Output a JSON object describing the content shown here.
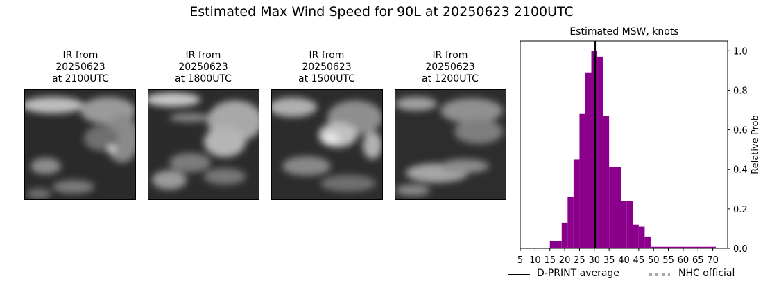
{
  "figure": {
    "title": "Estimated Max Wind Speed for 90L at 20250623 2100UTC"
  },
  "ir_panels": [
    {
      "line1": "IR from",
      "line2": "20250623",
      "line3": "at 2100UTC"
    },
    {
      "line1": "IR from",
      "line2": "20250623",
      "line3": "at 1800UTC"
    },
    {
      "line1": "IR from",
      "line2": "20250623",
      "line3": "at 1500UTC"
    },
    {
      "line1": "IR from",
      "line2": "20250623",
      "line3": "at 1200UTC"
    }
  ],
  "legend": {
    "dprint_label": "D-PRINT average",
    "nhc_label": "NHC official"
  },
  "chart_data": {
    "type": "bar",
    "title": "Estimated MSW, knots",
    "xlabel": "",
    "ylabel": "Relative Prob",
    "xlim": [
      5,
      75
    ],
    "ylim": [
      0,
      1.05
    ],
    "x_ticks": [
      5,
      10,
      15,
      20,
      25,
      30,
      35,
      40,
      45,
      50,
      55,
      60,
      65,
      70
    ],
    "y_ticks": [
      0.0,
      0.2,
      0.4,
      0.6,
      0.8,
      1.0
    ],
    "y_tick_labels": [
      "0.0",
      "0.2",
      "0.4",
      "0.6",
      "0.8",
      "1.0"
    ],
    "y_axis_side": "right",
    "bin_width": 2,
    "bins": [
      {
        "x0": 15,
        "value": 0.035
      },
      {
        "x0": 17,
        "value": 0.035
      },
      {
        "x0": 19,
        "value": 0.13
      },
      {
        "x0": 21,
        "value": 0.26
      },
      {
        "x0": 23,
        "value": 0.45
      },
      {
        "x0": 25,
        "value": 0.68
      },
      {
        "x0": 27,
        "value": 0.89
      },
      {
        "x0": 29,
        "value": 1.0
      },
      {
        "x0": 31,
        "value": 0.97
      },
      {
        "x0": 33,
        "value": 0.67
      },
      {
        "x0": 35,
        "value": 0.41
      },
      {
        "x0": 37,
        "value": 0.41
      },
      {
        "x0": 39,
        "value": 0.24
      },
      {
        "x0": 41,
        "value": 0.24
      },
      {
        "x0": 43,
        "value": 0.12
      },
      {
        "x0": 45,
        "value": 0.11
      },
      {
        "x0": 47,
        "value": 0.06
      },
      {
        "x0": 49,
        "value": 0.008
      },
      {
        "x0": 51,
        "value": 0.008
      },
      {
        "x0": 53,
        "value": 0.008
      },
      {
        "x0": 55,
        "value": 0.008
      },
      {
        "x0": 57,
        "value": 0.008
      },
      {
        "x0": 59,
        "value": 0.008
      },
      {
        "x0": 61,
        "value": 0.008
      },
      {
        "x0": 63,
        "value": 0.008
      },
      {
        "x0": 65,
        "value": 0.008
      },
      {
        "x0": 67,
        "value": 0.008
      },
      {
        "x0": 69,
        "value": 0.008
      }
    ],
    "dprint_average": 30.3,
    "bar_color": "#8b008b",
    "dprint_line_color": "#000000",
    "nhc_line_color": "#a9a9a9",
    "legend_position": "bottom"
  }
}
